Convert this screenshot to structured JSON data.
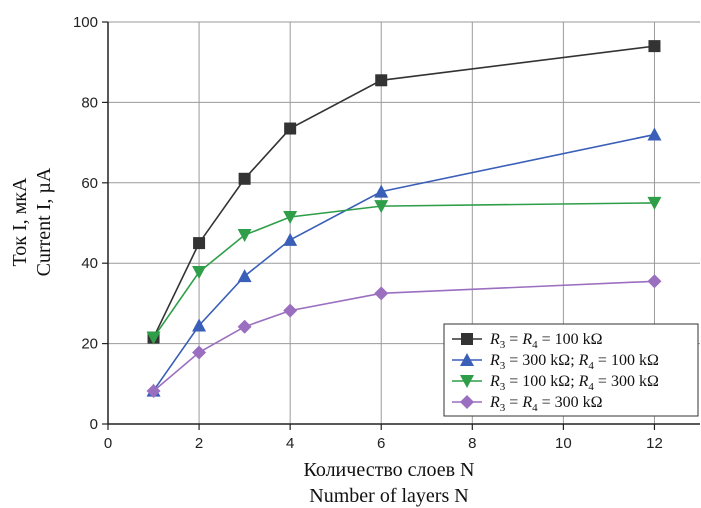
{
  "chart_data": {
    "type": "line",
    "xlabel_ru": "Количество слоев N",
    "xlabel_en": "Number of layers N",
    "ylabel_ru": "Ток I, мкА",
    "ylabel_en": "Current I, µA",
    "xlim": [
      0,
      13
    ],
    "ylim": [
      0,
      100
    ],
    "x_ticks": [
      0,
      2,
      4,
      6,
      8,
      10,
      12
    ],
    "y_ticks": [
      0,
      20,
      40,
      60,
      80,
      100
    ],
    "grid": true,
    "legend_position": "bottom-right",
    "x": [
      1,
      2,
      3,
      4,
      6,
      12
    ],
    "series": [
      {
        "name": "R3 = R4 = 100 kΩ",
        "label_html": "<tspan font-style='italic'>R</tspan><tspan font-size='11' dy='4'>3</tspan><tspan dy='-4'> = </tspan><tspan font-style='italic'>R</tspan><tspan font-size='11' dy='4'>4</tspan><tspan dy='-4'> = 100 kΩ</tspan>",
        "color": "#333333",
        "marker": "square",
        "values": [
          21.5,
          45,
          61,
          73.5,
          85.5,
          94
        ]
      },
      {
        "name": "R3 = 300 kΩ; R4 = 100 kΩ",
        "label_html": "<tspan font-style='italic'>R</tspan><tspan font-size='11' dy='4'>3</tspan><tspan dy='-4'> = 300 kΩ; </tspan><tspan font-style='italic'>R</tspan><tspan font-size='11' dy='4'>4</tspan><tspan dy='-4'> = 100 kΩ</tspan>",
        "color": "#3a5fb8",
        "marker": "triangle-up",
        "values": [
          8.3,
          24.5,
          36.8,
          45.8,
          57.8,
          72
        ]
      },
      {
        "name": "R3 = 100 kΩ; R4 = 300 kΩ",
        "label_html": "<tspan font-style='italic'>R</tspan><tspan font-size='11' dy='4'>3</tspan><tspan dy='-4'> = 100 kΩ; </tspan><tspan font-style='italic'>R</tspan><tspan font-size='11' dy='4'>4</tspan><tspan dy='-4'> = 300 kΩ</tspan>",
        "color": "#2e9e48",
        "marker": "triangle-down",
        "values": [
          21.5,
          37.8,
          47,
          51.5,
          54.2,
          55
        ]
      },
      {
        "name": "R3 = R4 = 300 kΩ",
        "label_html": "<tspan font-style='italic'>R</tspan><tspan font-size='11' dy='4'>3</tspan><tspan dy='-4'> = </tspan><tspan font-style='italic'>R</tspan><tspan font-size='11' dy='4'>4</tspan><tspan dy='-4'> = 300 kΩ</tspan>",
        "color": "#9b6fc0",
        "marker": "diamond",
        "values": [
          8.2,
          17.8,
          24.2,
          28.2,
          32.5,
          35.5
        ]
      }
    ]
  }
}
